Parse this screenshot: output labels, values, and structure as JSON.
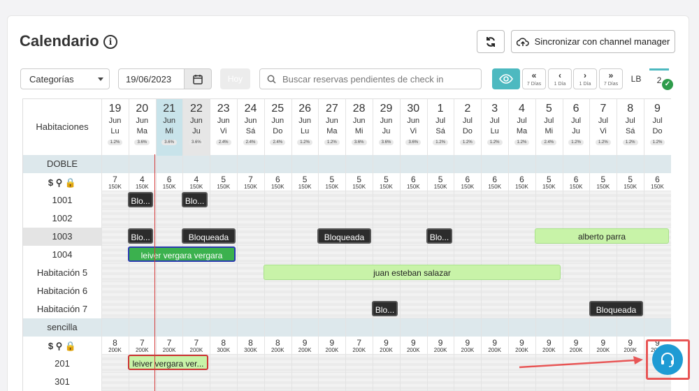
{
  "header": {
    "title": "Calendario",
    "sync_label": "Sincronizar con channel manager"
  },
  "toolbar": {
    "category_value": "Categorías",
    "date_value": "19/06/2023",
    "today_label": "Hoy",
    "search_placeholder": "Buscar reservas pendientes de check in",
    "nav": [
      {
        "arrow": "«",
        "sub": "7 Días"
      },
      {
        "arrow": "‹",
        "sub": "1 Día"
      },
      {
        "arrow": "›",
        "sub": "1 Día"
      },
      {
        "arrow": "»",
        "sub": "7 Días"
      }
    ],
    "lb_label": "LB",
    "count": "2"
  },
  "grid": {
    "rooms_header": "Habitaciones",
    "days": [
      {
        "d": "19",
        "m": "Jun",
        "w": "Lu",
        "p": "1.2%"
      },
      {
        "d": "20",
        "m": "Jun",
        "w": "Ma",
        "p": "3.6%"
      },
      {
        "d": "21",
        "m": "Jun",
        "w": "Mi",
        "p": "3.6%"
      },
      {
        "d": "22",
        "m": "Jun",
        "w": "Ju",
        "p": "3.6%"
      },
      {
        "d": "23",
        "m": "Jun",
        "w": "Vi",
        "p": "2.4%"
      },
      {
        "d": "24",
        "m": "Jun",
        "w": "Sá",
        "p": "2.4%"
      },
      {
        "d": "25",
        "m": "Jun",
        "w": "Do",
        "p": "2.4%"
      },
      {
        "d": "26",
        "m": "Jun",
        "w": "Lu",
        "p": "1.2%"
      },
      {
        "d": "27",
        "m": "Jun",
        "w": "Ma",
        "p": "1.2%"
      },
      {
        "d": "28",
        "m": "Jun",
        "w": "Mi",
        "p": "3.6%"
      },
      {
        "d": "29",
        "m": "Jun",
        "w": "Ju",
        "p": "3.6%"
      },
      {
        "d": "30",
        "m": "Jun",
        "w": "Vi",
        "p": "3.6%"
      },
      {
        "d": "1",
        "m": "Jul",
        "w": "Sá",
        "p": "1.2%"
      },
      {
        "d": "2",
        "m": "Jul",
        "w": "Do",
        "p": "1.2%"
      },
      {
        "d": "3",
        "m": "Jul",
        "w": "Lu",
        "p": "1.2%"
      },
      {
        "d": "4",
        "m": "Jul",
        "w": "Ma",
        "p": "1.2%"
      },
      {
        "d": "5",
        "m": "Jul",
        "w": "Mi",
        "p": "2.4%"
      },
      {
        "d": "6",
        "m": "Jul",
        "w": "Ju",
        "p": "1.2%"
      },
      {
        "d": "7",
        "m": "Jul",
        "w": "Vi",
        "p": "1.2%"
      },
      {
        "d": "8",
        "m": "Jul",
        "w": "Sá",
        "p": "1.2%"
      },
      {
        "d": "9",
        "m": "Jul",
        "w": "Do",
        "p": "1.2%"
      }
    ],
    "groups": [
      {
        "name": "DOBLE",
        "avail": [
          "7",
          "4",
          "6",
          "4",
          "5",
          "7",
          "6",
          "5",
          "5",
          "5",
          "5",
          "6",
          "5",
          "6",
          "6",
          "6",
          "5",
          "6",
          "5",
          "5",
          "6"
        ],
        "price": "150K",
        "rooms": [
          "1001",
          "1002",
          "1003",
          "1004",
          "Habitación 5",
          "Habitación 6",
          "Habitación 7"
        ]
      },
      {
        "name": "sencilla",
        "avail": [
          "8",
          "7",
          "7",
          "7",
          "8",
          "8",
          "8",
          "9",
          "9",
          "7",
          "9",
          "9",
          "9",
          "9",
          "9",
          "9",
          "9",
          "9",
          "9",
          "9",
          "9"
        ],
        "prices": [
          "200K",
          "200K",
          "200K",
          "200K",
          "300K",
          "300K",
          "200K",
          "200K",
          "200K",
          "200K",
          "200K",
          "200K",
          "200K",
          "200K",
          "200K",
          "200K",
          "200K",
          "200K",
          "200K",
          "200K",
          "200K"
        ],
        "rooms": [
          "201",
          "301"
        ]
      }
    ],
    "bookings": {
      "b1": "Blo...",
      "b2": "Blo...",
      "b3": "Blo...",
      "b4": "Bloqueada",
      "b5": "Bloqueada",
      "b6": "Blo...",
      "b7": "alberto parra",
      "b8": "leiver vergara vergara",
      "b9": "juan esteban salazar",
      "b10": "Blo...",
      "b11": "Bloqueada",
      "b12": "leiver vergara ver..."
    }
  }
}
